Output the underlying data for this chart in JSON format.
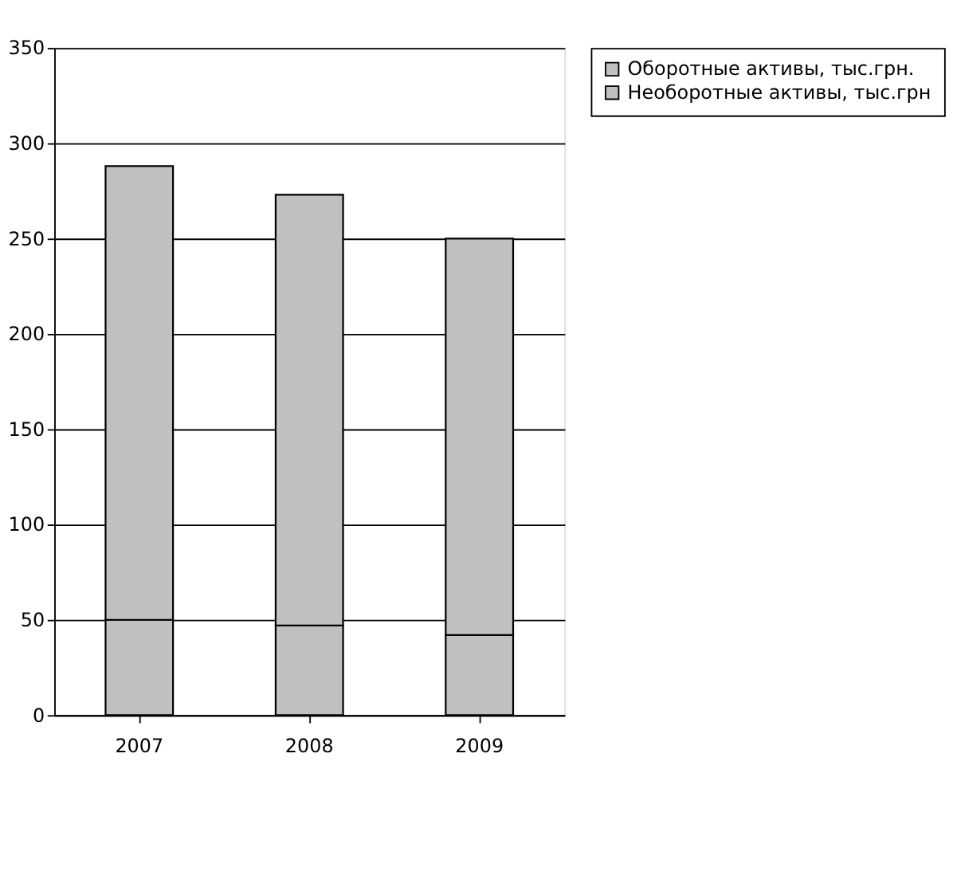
{
  "chart_data": {
    "type": "bar",
    "stacked": true,
    "categories": [
      "2007",
      "2008",
      "2009"
    ],
    "series": [
      {
        "name": "Необоротные активы, тыс.грн",
        "color": "#c0c0c0",
        "values": [
          50,
          47,
          42
        ]
      },
      {
        "name": "Оборотные активы, тыс.грн.",
        "color": "#c0c0c0",
        "values": [
          238,
          226,
          208
        ]
      }
    ],
    "ylim": [
      0,
      350
    ],
    "yticks": [
      0,
      50,
      100,
      150,
      200,
      250,
      300,
      350
    ],
    "grid": "y",
    "legend": "right"
  }
}
